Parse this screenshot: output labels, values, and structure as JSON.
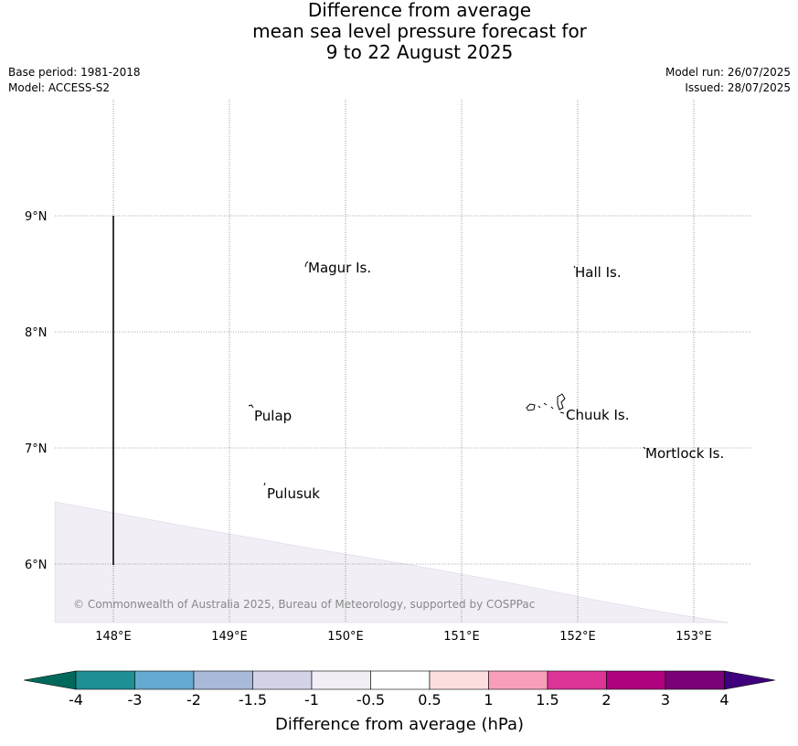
{
  "title": {
    "line1": "Difference from average",
    "line2": "mean sea level pressure forecast for",
    "line3": "9 to 22 August 2025"
  },
  "meta": {
    "base_period": "Base period: 1981-2018",
    "model": "Model: ACCESS-S2",
    "model_run": "Model run: 26/07/2025",
    "issued": "Issued: 28/07/2025"
  },
  "map": {
    "lat_labels": [
      "9°N",
      "8°N",
      "7°N",
      "6°N"
    ],
    "lon_labels": [
      "148°E",
      "149°E",
      "150°E",
      "151°E",
      "152°E",
      "153°E"
    ],
    "places": [
      "Magur Is.",
      "Hall Is.",
      "Pulap",
      "Chuuk Is.",
      "Mortlock Is.",
      "Pulusuk"
    ],
    "anomaly_region": "-1 to -0.5",
    "copyright": "© Commonwealth of Australia 2025, Bureau of Meteorology, supported by COSPPac"
  },
  "colorbar": {
    "ticks": [
      "-4",
      "-3",
      "-2",
      "-1.5",
      "-1",
      "-0.5",
      "0.5",
      "1",
      "1.5",
      "2",
      "3",
      "4"
    ],
    "colors": [
      "#00695c",
      "#1e8f94",
      "#64aad1",
      "#a8b9da",
      "#d2d3e7",
      "#f2eef6",
      "#ffffff",
      "#fddede",
      "#f99eb9",
      "#dd3497",
      "#ae017e",
      "#7a0177",
      "#3f007d"
    ],
    "label": "Difference from average (hPa)"
  }
}
